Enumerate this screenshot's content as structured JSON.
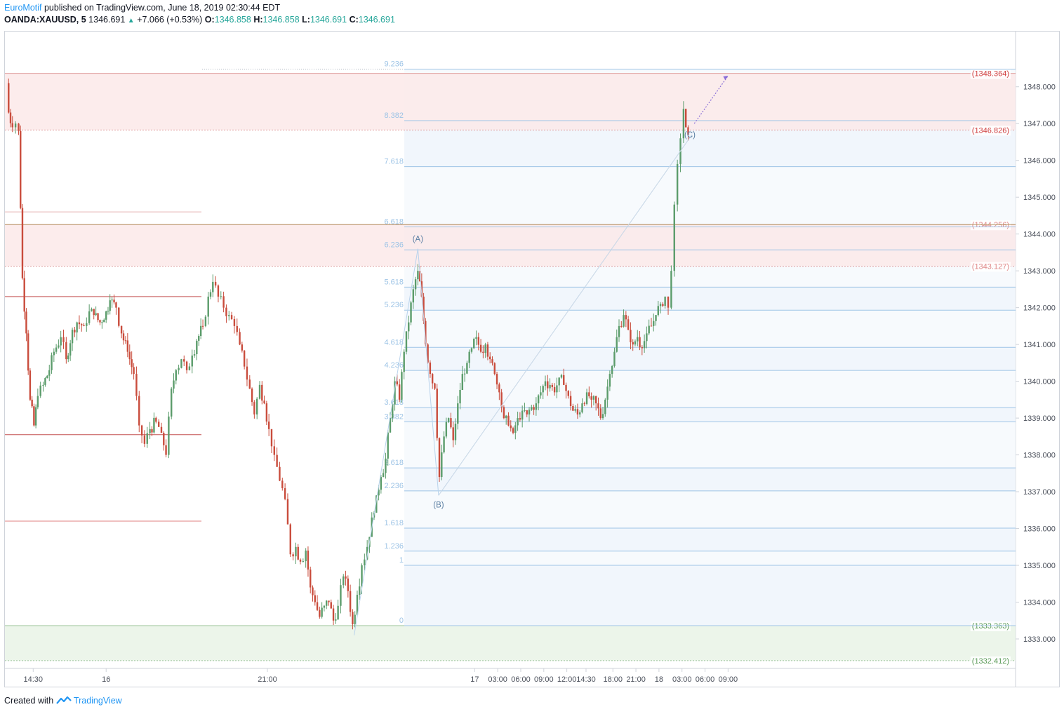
{
  "header": {
    "author": "EuroMotif",
    "published_text": "published on TradingView.com, June 18, 2019 02:30:44 EDT",
    "symbol": "OANDA:XAUUSD, 5",
    "last": "1346.691",
    "change": "+7.066 (+0.53%)",
    "ohlc": {
      "o_label": "O:",
      "o": "1346.858",
      "h_label": "H:",
      "h": "1346.858",
      "l_label": "L:",
      "l": "1346.691",
      "c_label": "C:",
      "c": "1346.691"
    }
  },
  "footer": {
    "created_with": "Created with",
    "brand": "TradingView"
  },
  "colors": {
    "bull": "#5b9c6b",
    "bear": "#c94c3c",
    "fib_line": "#9ec4e6",
    "resistance": "#e0a0a0",
    "support": "#9cc39a",
    "accent": "#2196f3"
  },
  "chart_data": {
    "type": "candlestick",
    "title": "",
    "ylim": [
      1332.2,
      1349.5
    ],
    "y_ticks": [
      "1333.000",
      "1334.000",
      "1335.000",
      "1336.000",
      "1337.000",
      "1338.000",
      "1339.000",
      "1340.000",
      "1341.000",
      "1342.000",
      "1343.000",
      "1344.000",
      "1345.000",
      "1346.000",
      "1347.000",
      "1348.000"
    ],
    "x_ticks": [
      {
        "label": "14:30",
        "hours": 3.5
      },
      {
        "label": "16",
        "hours": 13
      },
      {
        "label": "21:00",
        "hours": 34
      },
      {
        "label": "17",
        "hours": 61
      },
      {
        "label": "03:00",
        "hours": 64
      },
      {
        "label": "06:00",
        "hours": 67
      },
      {
        "label": "09:00",
        "hours": 70
      },
      {
        "label": "12:00",
        "hours": 73
      },
      {
        "label": "14:30",
        "hours": 75.5
      },
      {
        "label": "18:00",
        "hours": 79
      },
      {
        "label": "21:00",
        "hours": 82
      },
      {
        "label": "18",
        "hours": 85
      },
      {
        "label": "03:00",
        "hours": 88
      },
      {
        "label": "06:00",
        "hours": 91
      },
      {
        "label": "09:00",
        "hours": 94
      }
    ],
    "fib_levels": [
      {
        "label": "0",
        "price": 1333.363
      },
      {
        "label": "1",
        "price": 1335.0
      },
      {
        "label": "1.236",
        "price": 1335.386
      },
      {
        "label": "1.618",
        "price": 1336.011
      },
      {
        "label": "2.236",
        "price": 1337.022
      },
      {
        "label": "2.618",
        "price": 1337.647
      },
      {
        "label": "3.382",
        "price": 1338.898
      },
      {
        "label": "3.618",
        "price": 1339.284
      },
      {
        "label": "4.236",
        "price": 1340.296
      },
      {
        "label": "4.618",
        "price": 1340.921
      },
      {
        "label": "5.236",
        "price": 1341.932
      },
      {
        "label": "5.618",
        "price": 1342.557
      },
      {
        "label": "6.236",
        "price": 1343.569
      },
      {
        "label": "6.618",
        "price": 1344.194
      },
      {
        "label": "7.618",
        "price": 1345.83
      },
      {
        "label": "8.382",
        "price": 1347.08
      },
      {
        "label": "9.236",
        "price": 1348.477
      }
    ],
    "zones": [
      {
        "label": "(1348.364)",
        "top": 1348.364,
        "bottom": 1346.826,
        "kind": "resistance"
      },
      {
        "label": "(1344.256)",
        "top": 1344.256,
        "bottom": 1343.127,
        "kind": "resistance"
      },
      {
        "label": "(1343.127)",
        "top": 1343.127,
        "bottom": 1343.127,
        "kind": "resistance"
      },
      {
        "label": "(1346.826)",
        "top": 1346.826,
        "bottom": 1346.826,
        "kind": "resistance"
      },
      {
        "label": "(1333.363)",
        "top": 1333.363,
        "bottom": 1332.412,
        "kind": "support"
      },
      {
        "label": "(1332.412)",
        "top": 1332.412,
        "bottom": 1332.412,
        "kind": "support"
      }
    ],
    "waves": [
      {
        "label": "(A)",
        "price": 1343.6
      },
      {
        "label": "(B)",
        "price": 1336.9
      },
      {
        "label": "(C)",
        "price": 1346.7
      }
    ],
    "price_path": [
      [
        0,
        1348.1
      ],
      [
        0.3,
        1347.3
      ],
      [
        0.8,
        1346.9
      ],
      [
        1.2,
        1347.0
      ],
      [
        1.6,
        1346.8
      ],
      [
        2.1,
        1342.8
      ],
      [
        2.6,
        1341.3
      ],
      [
        3.1,
        1339.5
      ],
      [
        3.6,
        1338.8
      ],
      [
        4.1,
        1339.6
      ],
      [
        4.8,
        1339.9
      ],
      [
        5.6,
        1340.3
      ],
      [
        6.2,
        1340.8
      ],
      [
        7.1,
        1341.2
      ],
      [
        7.8,
        1340.6
      ],
      [
        8.6,
        1341.4
      ],
      [
        9.2,
        1341.6
      ],
      [
        10.1,
        1341.5
      ],
      [
        10.8,
        1341.9
      ],
      [
        11.4,
        1341.8
      ],
      [
        12.2,
        1341.6
      ],
      [
        13.0,
        1341.9
      ],
      [
        13.5,
        1342.2
      ],
      [
        14.3,
        1342.0
      ],
      [
        15.0,
        1341.3
      ],
      [
        15.8,
        1340.8
      ],
      [
        16.6,
        1340.2
      ],
      [
        17.3,
        1338.8
      ],
      [
        18.0,
        1338.3
      ],
      [
        18.7,
        1338.7
      ],
      [
        19.5,
        1338.9
      ],
      [
        20.2,
        1338.6
      ],
      [
        20.8,
        1338.0
      ],
      [
        21.5,
        1339.8
      ],
      [
        22.1,
        1340.3
      ],
      [
        22.8,
        1340.6
      ],
      [
        23.5,
        1340.3
      ],
      [
        24.2,
        1340.7
      ],
      [
        24.8,
        1341.1
      ],
      [
        25.6,
        1341.5
      ],
      [
        26.3,
        1342.3
      ],
      [
        26.9,
        1342.7
      ],
      [
        27.6,
        1342.3
      ],
      [
        28.3,
        1342.0
      ],
      [
        29.0,
        1341.8
      ],
      [
        29.7,
        1341.5
      ],
      [
        30.4,
        1341.0
      ],
      [
        31.0,
        1340.4
      ],
      [
        31.7,
        1339.8
      ],
      [
        32.3,
        1339.1
      ],
      [
        33.0,
        1339.9
      ],
      [
        33.6,
        1339.4
      ],
      [
        34.2,
        1338.7
      ],
      [
        34.9,
        1338.0
      ],
      [
        35.6,
        1337.3
      ],
      [
        36.3,
        1336.8
      ],
      [
        37.0,
        1335.3
      ],
      [
        37.7,
        1335.5
      ],
      [
        38.3,
        1335.1
      ],
      [
        39.0,
        1335.4
      ],
      [
        39.6,
        1334.4
      ],
      [
        40.2,
        1334.0
      ],
      [
        40.8,
        1333.6
      ],
      [
        41.4,
        1333.9
      ],
      [
        42.0,
        1334.0
      ],
      [
        42.6,
        1333.5
      ],
      [
        43.2,
        1333.9
      ],
      [
        43.9,
        1334.7
      ],
      [
        44.5,
        1334.3
      ],
      [
        45.1,
        1333.4
      ],
      [
        45.7,
        1334.2
      ],
      [
        46.3,
        1335.0
      ],
      [
        47.0,
        1335.5
      ],
      [
        47.6,
        1336.3
      ],
      [
        48.2,
        1336.9
      ],
      [
        48.8,
        1337.4
      ],
      [
        49.4,
        1337.9
      ],
      [
        50.0,
        1339.0
      ],
      [
        50.6,
        1340.0
      ],
      [
        51.2,
        1339.5
      ],
      [
        51.8,
        1340.8
      ],
      [
        52.4,
        1341.6
      ],
      [
        53.0,
        1342.5
      ],
      [
        53.6,
        1343.0
      ],
      [
        54.1,
        1342.3
      ],
      [
        54.6,
        1341.0
      ],
      [
        55.2,
        1340.2
      ],
      [
        55.8,
        1339.8
      ],
      [
        56.4,
        1337.4
      ],
      [
        57.0,
        1338.5
      ],
      [
        57.6,
        1339.0
      ],
      [
        58.2,
        1338.4
      ],
      [
        58.8,
        1339.4
      ],
      [
        59.4,
        1340.2
      ],
      [
        60.0,
        1340.5
      ],
      [
        60.6,
        1340.9
      ],
      [
        61.2,
        1341.2
      ],
      [
        61.8,
        1340.8
      ],
      [
        62.4,
        1341.0
      ],
      [
        63.0,
        1340.6
      ],
      [
        63.6,
        1340.2
      ],
      [
        64.2,
        1339.7
      ],
      [
        64.8,
        1339.0
      ],
      [
        65.4,
        1338.8
      ],
      [
        66.0,
        1338.6
      ],
      [
        66.6,
        1339.0
      ],
      [
        67.2,
        1339.2
      ],
      [
        67.8,
        1339.1
      ],
      [
        68.4,
        1339.3
      ],
      [
        69.0,
        1339.4
      ],
      [
        69.6,
        1339.7
      ],
      [
        70.2,
        1340.0
      ],
      [
        70.8,
        1339.9
      ],
      [
        71.4,
        1339.7
      ],
      [
        72.0,
        1340.1
      ],
      [
        72.6,
        1339.9
      ],
      [
        73.2,
        1339.6
      ],
      [
        73.8,
        1339.2
      ],
      [
        74.4,
        1339.1
      ],
      [
        75.0,
        1339.4
      ],
      [
        75.6,
        1339.7
      ],
      [
        76.2,
        1339.5
      ],
      [
        76.8,
        1339.4
      ],
      [
        77.4,
        1339.0
      ],
      [
        78.0,
        1339.5
      ],
      [
        78.6,
        1340.2
      ],
      [
        79.2,
        1340.8
      ],
      [
        79.8,
        1341.5
      ],
      [
        80.4,
        1341.8
      ],
      [
        81.0,
        1341.4
      ],
      [
        81.6,
        1341.0
      ],
      [
        82.2,
        1341.2
      ],
      [
        82.8,
        1340.9
      ],
      [
        83.4,
        1341.3
      ],
      [
        84.0,
        1341.5
      ],
      [
        84.6,
        1341.8
      ],
      [
        85.2,
        1342.1
      ],
      [
        85.8,
        1342.3
      ],
      [
        86.2,
        1342.0
      ],
      [
        86.6,
        1343.0
      ],
      [
        87.0,
        1344.8
      ],
      [
        87.4,
        1345.9
      ],
      [
        87.8,
        1346.6
      ],
      [
        88.2,
        1347.4
      ],
      [
        88.5,
        1346.9
      ],
      [
        88.8,
        1346.7
      ]
    ]
  }
}
